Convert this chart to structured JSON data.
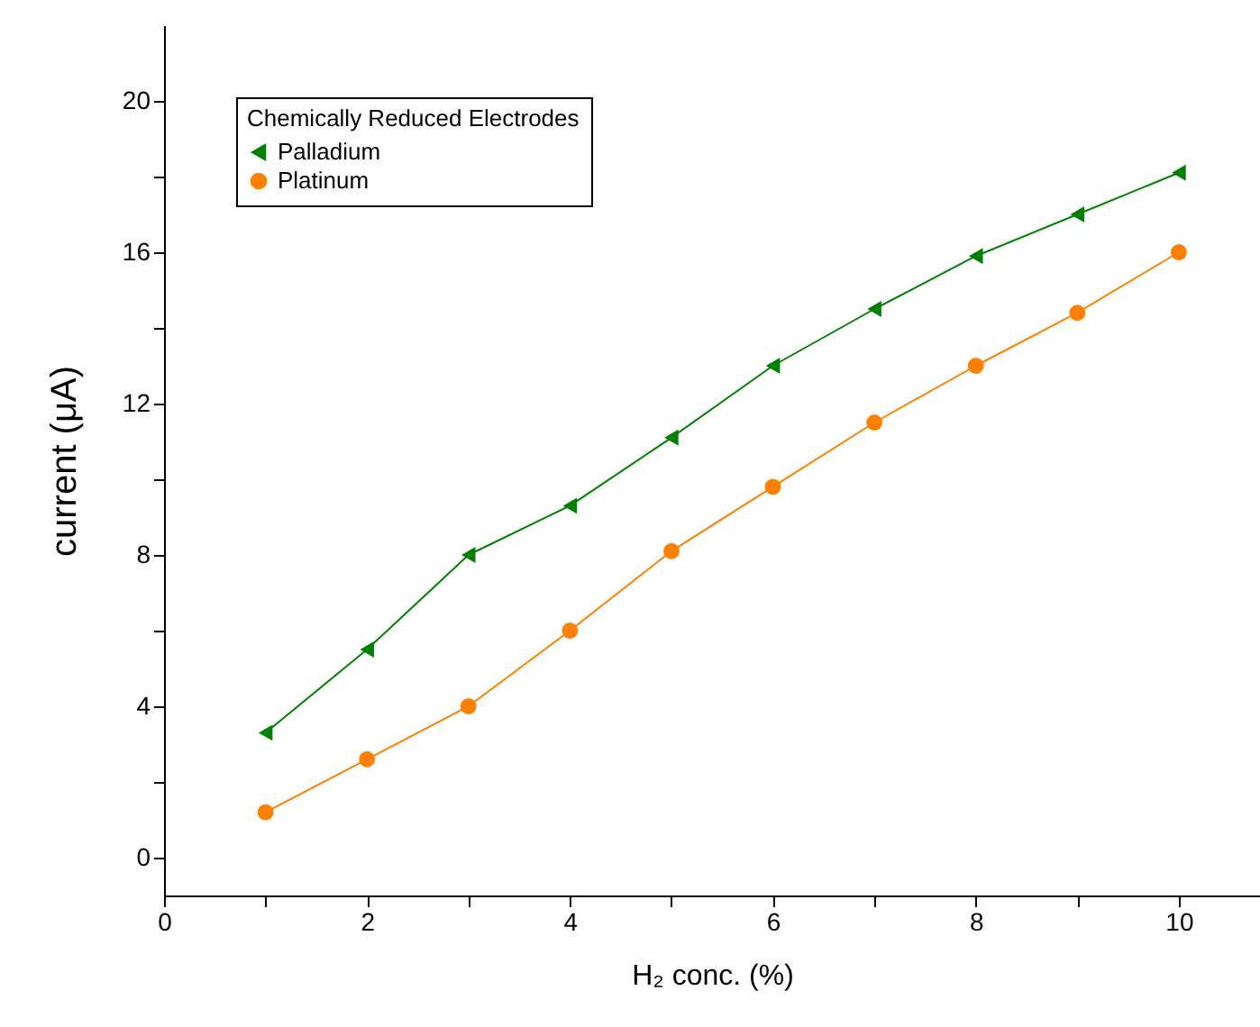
{
  "chart_data": {
    "type": "line",
    "xlabel": "H₂ conc. (%)",
    "ylabel": "current (μA)",
    "legend_title": "Chemically Reduced Electrodes",
    "legend": "top left",
    "grid": false,
    "x": [
      1,
      2,
      3,
      4,
      5,
      6,
      7,
      8,
      9,
      10
    ],
    "series": [
      {
        "name": "Palladium",
        "color": "#008000",
        "marker": "triangle",
        "values": [
          3.3,
          5.5,
          8.0,
          9.3,
          11.1,
          13.0,
          14.5,
          15.9,
          17.0,
          18.1
        ]
      },
      {
        "name": "Platinum",
        "color": "#ff8000",
        "marker": "circle",
        "values": [
          1.2,
          2.6,
          4.0,
          6.0,
          8.1,
          9.8,
          11.5,
          13.0,
          14.4,
          16.0
        ]
      }
    ],
    "xlim": [
      0,
      10.8
    ],
    "xticks": [
      0,
      {
        "value": 1,
        "label": null
      },
      2,
      {
        "value": 3,
        "label": null
      },
      4,
      {
        "value": 5,
        "label": null
      },
      6,
      {
        "value": 7,
        "label": null
      },
      8,
      {
        "value": 9,
        "label": null
      },
      10
    ],
    "ylim": [
      -1,
      22
    ],
    "yticks": [
      0,
      {
        "value": 2,
        "label": null
      },
      4,
      {
        "value": 6,
        "label": null
      },
      8,
      {
        "value": 10,
        "label": null
      },
      12,
      {
        "value": 14,
        "label": null
      },
      16,
      {
        "value": 18,
        "label": null
      },
      20
    ]
  }
}
